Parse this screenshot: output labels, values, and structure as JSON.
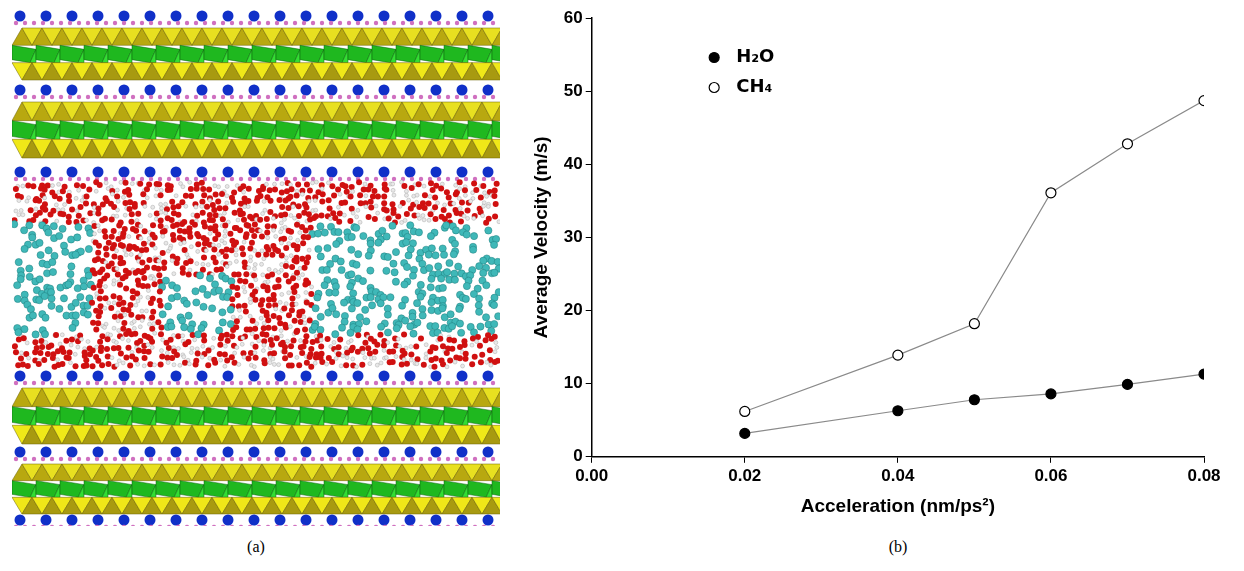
{
  "chart_data": {
    "type": "line",
    "x_label": "Acceleration (nm/ps²)",
    "y_label": "Average Velocity (m/s)",
    "x": [
      0.02,
      0.04,
      0.05,
      0.06,
      0.07,
      0.08
    ],
    "series": [
      {
        "name": "H₂O",
        "color": "#000000",
        "marker": "circle",
        "values": [
          3.2,
          6.3,
          7.8,
          8.6,
          9.9,
          11.3
        ]
      },
      {
        "name": "CH₄",
        "color": "#000000",
        "marker": "open_circle",
        "values": [
          6.2,
          13.9,
          18.2,
          36.1,
          42.8,
          48.7
        ]
      }
    ],
    "xlim": [
      0,
      0.08
    ],
    "xticks": [
      {
        "value": 0,
        "label": "0.00"
      },
      {
        "value": 0.02,
        "label": "0.02"
      },
      {
        "value": 0.04,
        "label": "0.04"
      },
      {
        "value": 0.06,
        "label": "0.06"
      },
      {
        "value": 0.08,
        "label": "0.08"
      }
    ],
    "ylim": [
      0,
      60
    ],
    "yticks": [
      0,
      10,
      20,
      30,
      40,
      50,
      60
    ],
    "grid": false,
    "legend": "upper left"
  },
  "panel_labels": [
    "(a)",
    "(b)"
  ]
}
